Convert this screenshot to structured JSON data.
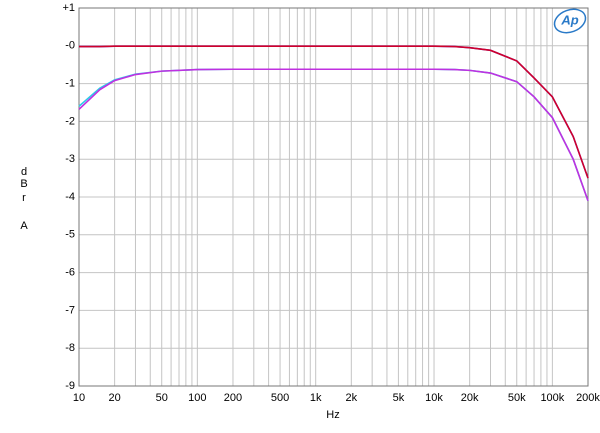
{
  "chart_data": {
    "type": "line",
    "xlabel": "Hz",
    "ylabel": [
      "d",
      "B",
      "r",
      "A"
    ],
    "logo": "Ap",
    "xscale": "log",
    "grid": true,
    "xlim": [
      10,
      200000
    ],
    "ylim": [
      -9,
      1
    ],
    "xticks": [
      10,
      20,
      50,
      100,
      200,
      500,
      {
        "value": 1000,
        "label": "1k"
      },
      {
        "value": 2000,
        "label": "2k"
      },
      {
        "value": 5000,
        "label": "5k"
      },
      {
        "value": 10000,
        "label": "10k"
      },
      {
        "value": 20000,
        "label": "20k"
      },
      {
        "value": 50000,
        "label": "50k"
      },
      {
        "value": 100000,
        "label": "100k"
      },
      {
        "value": 200000,
        "label": "200k"
      }
    ],
    "x_minor_ticks": [
      30,
      40,
      60,
      70,
      80,
      90,
      300,
      400,
      600,
      700,
      800,
      900,
      3000,
      4000,
      6000,
      7000,
      8000,
      9000,
      30000,
      40000,
      60000,
      70000,
      80000,
      90000,
      300000
    ],
    "yticks": [
      {
        "value": 1,
        "label": "+1"
      },
      {
        "value": 0,
        "label": "-0"
      },
      -1,
      -2,
      -3,
      -4,
      -5,
      -6,
      -7,
      -8,
      -9
    ],
    "x": [
      10,
      15,
      20,
      30,
      50,
      100,
      200,
      500,
      1000,
      2000,
      5000,
      10000,
      15000,
      20000,
      30000,
      50000,
      70000,
      100000,
      150000,
      200000
    ],
    "series": [
      {
        "color": "#3a3aff",
        "values": [
          -0.02,
          -0.02,
          -0.01,
          -0.01,
          -0.01,
          -0.01,
          -0.01,
          -0.01,
          -0.01,
          -0.01,
          -0.01,
          -0.01,
          -0.02,
          -0.05,
          -0.12,
          -0.4,
          -0.85,
          -1.35,
          -2.4,
          -3.5
        ]
      },
      {
        "color": "#d0002a",
        "values": [
          -0.02,
          -0.02,
          -0.01,
          -0.01,
          -0.01,
          -0.01,
          -0.01,
          -0.01,
          -0.01,
          -0.01,
          -0.01,
          -0.01,
          -0.02,
          -0.05,
          -0.12,
          -0.4,
          -0.85,
          -1.35,
          -2.4,
          -3.5
        ]
      },
      {
        "color": "#30c8e8",
        "values": [
          -1.6,
          -1.12,
          -0.9,
          -0.75,
          -0.67,
          -0.63,
          -0.62,
          -0.62,
          -0.62,
          -0.62,
          -0.62,
          -0.62,
          -0.63,
          -0.65,
          -0.72,
          -0.95,
          -1.35,
          -1.9,
          -3.0,
          -4.1
        ]
      },
      {
        "color": "#c030e0",
        "values": [
          -1.68,
          -1.16,
          -0.92,
          -0.76,
          -0.67,
          -0.63,
          -0.62,
          -0.62,
          -0.62,
          -0.62,
          -0.62,
          -0.62,
          -0.63,
          -0.65,
          -0.72,
          -0.95,
          -1.35,
          -1.9,
          -3.0,
          -4.1
        ]
      }
    ]
  }
}
